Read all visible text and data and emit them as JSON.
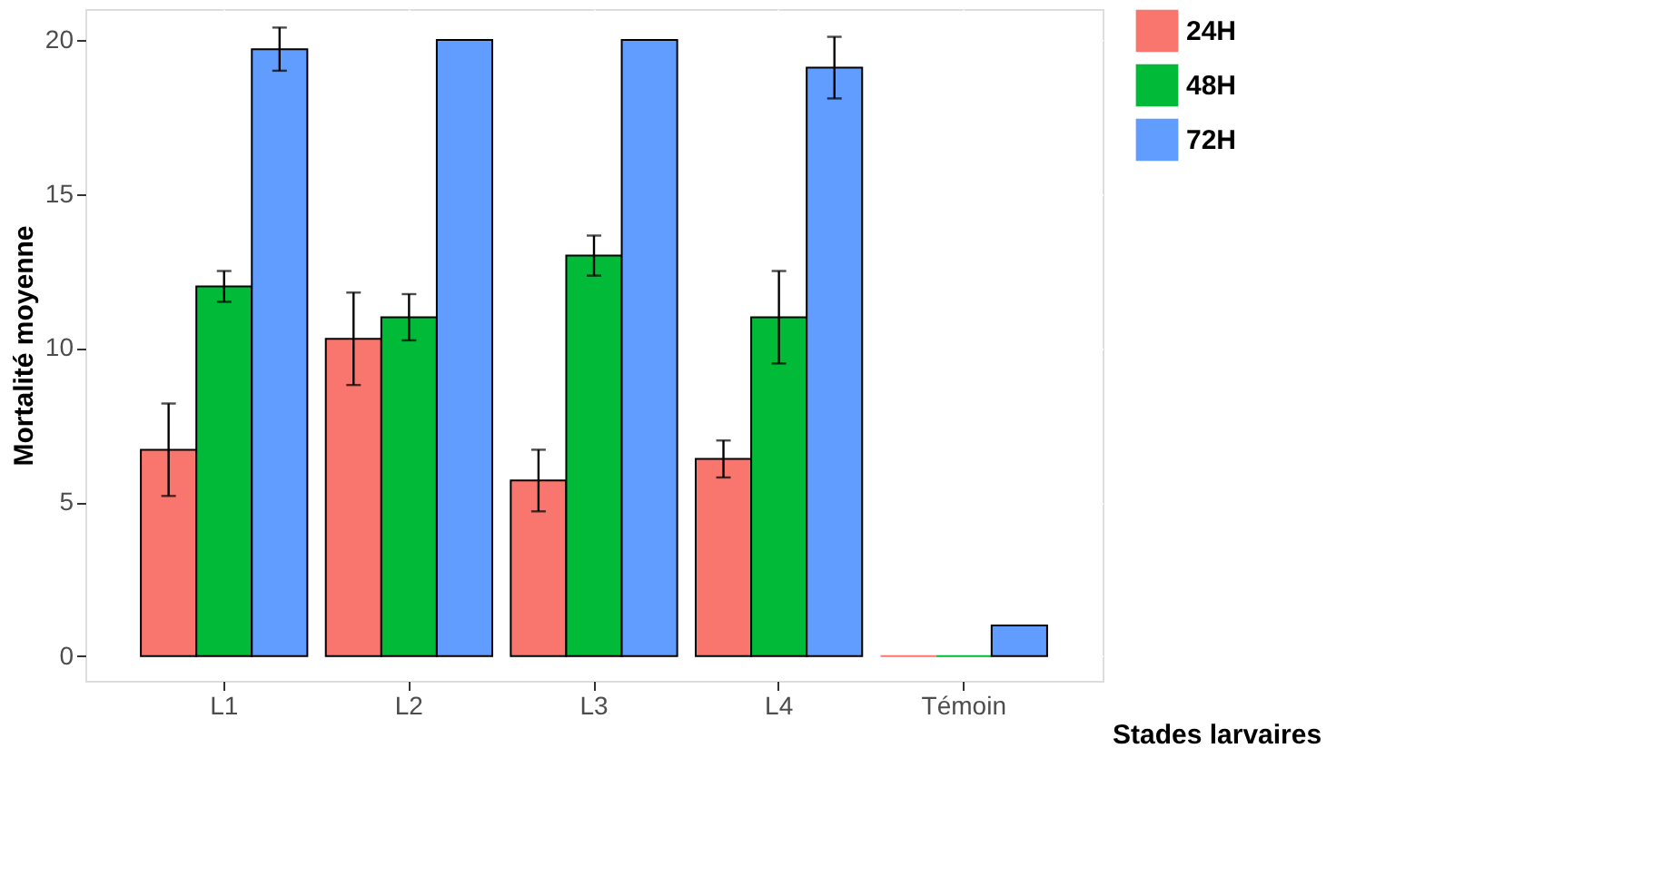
{
  "chart_data": {
    "type": "bar",
    "xlabel": "Stades larvaires",
    "ylabel": "Mortalité moyenne",
    "categories": [
      "L1",
      "L2",
      "L3",
      "L4",
      "Témoin"
    ],
    "series": [
      {
        "name": "24H",
        "color": "#f8766d",
        "values": [
          6.7,
          10.3,
          5.7,
          6.4,
          0
        ],
        "errors": [
          1.5,
          1.5,
          1.0,
          0.6,
          null
        ]
      },
      {
        "name": "48H",
        "color": "#00ba38",
        "values": [
          12.0,
          11.0,
          13.0,
          11.0,
          0
        ],
        "errors": [
          0.5,
          0.75,
          0.65,
          1.5,
          null
        ]
      },
      {
        "name": "72H",
        "color": "#619cff",
        "values": [
          19.7,
          20,
          20,
          19.1,
          1.0
        ],
        "errors": [
          0.7,
          null,
          null,
          1.0,
          null
        ]
      }
    ],
    "ylim": [
      -0.8,
      21
    ],
    "yticks": [
      0,
      5,
      10,
      15,
      20
    ],
    "grid": true,
    "legend": "right"
  }
}
